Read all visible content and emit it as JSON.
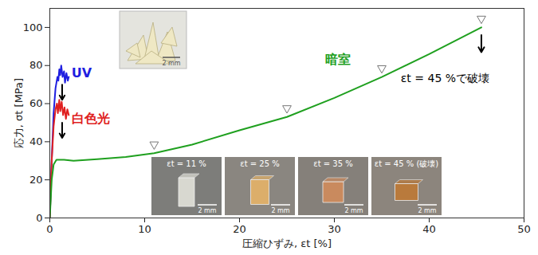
{
  "chart_data": {
    "type": "line",
    "x_label": "圧縮ひずみ, εt [%]",
    "y_label": "応力, σt [MPa]",
    "xlim": [
      0,
      50
    ],
    "ylim": [
      0,
      110
    ],
    "xticks": [
      0,
      10,
      20,
      30,
      40,
      50
    ],
    "yticks": [
      0,
      20,
      40,
      60,
      80,
      100
    ],
    "series": [
      {
        "name": "UV",
        "color": "#1f1fe0",
        "x": [
          0,
          0.2,
          0.4,
          0.6,
          0.8,
          0.9,
          1.0,
          1.1,
          1.2,
          1.35,
          1.5,
          1.6,
          1.75,
          1.9,
          2.0
        ],
        "values": [
          0,
          30,
          55,
          68,
          74,
          72,
          78,
          75,
          80,
          74,
          77,
          71,
          76,
          72,
          74
        ],
        "label_at": [
          2.3,
          76
        ]
      },
      {
        "name": "白色光",
        "color": "#e01f1f",
        "x": [
          0,
          0.2,
          0.4,
          0.6,
          0.75,
          0.85,
          1.0,
          1.1,
          1.25,
          1.4,
          1.55,
          1.7,
          1.85,
          2.0
        ],
        "values": [
          0,
          30,
          48,
          57,
          60,
          55,
          62,
          56,
          61,
          54,
          58,
          52,
          57,
          54
        ],
        "label_at": [
          2.3,
          52
        ]
      },
      {
        "name": "暗室",
        "color": "#1fa01f",
        "x": [
          0,
          0.2,
          0.4,
          0.7,
          1.5,
          2.5,
          5,
          8,
          11,
          15,
          20,
          25,
          30,
          35,
          40,
          45.5
        ],
        "values": [
          0,
          20,
          28,
          30.5,
          30.5,
          30,
          30.8,
          32,
          34,
          38.5,
          46,
          53,
          63,
          74,
          86,
          100
        ],
        "label_at": [
          29,
          83
        ],
        "markers": {
          "x": [
            11,
            25,
            35,
            45.5
          ],
          "y": [
            34,
            53,
            74,
            100
          ]
        }
      }
    ],
    "arrows": [
      {
        "x": 1.3,
        "y1": 70,
        "y2": 62
      },
      {
        "x": 1.3,
        "y1": 50,
        "y2": 42
      },
      {
        "x": 45.5,
        "y1": 96,
        "y2": 87
      }
    ],
    "annotations": [
      {
        "text": "εt = 45 %で破壊",
        "x": 37,
        "y": 73
      }
    ],
    "insets": {
      "labels": [
        "εt = 11 %",
        "εt = 25 %",
        "εt = 35 %",
        "εt = 45 % (破壊)"
      ],
      "scale_label": "2 mm"
    }
  }
}
